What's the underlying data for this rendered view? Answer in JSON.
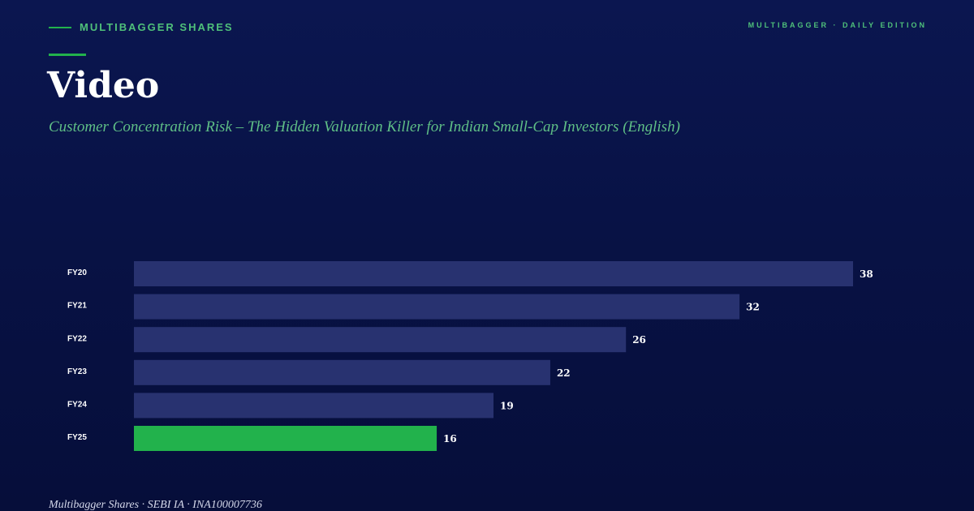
{
  "header": {
    "brand": "MULTIBAGGER SHARES",
    "edition": "MULTIBAGGER · DAILY EDITION"
  },
  "title": "Video",
  "subtitle": "Customer Concentration Risk – The Hidden Valuation Killer for Indian Small-Cap Investors (English)",
  "footer": "Multibagger Shares · SEBI IA · INA100007736",
  "colors": {
    "background": "#081245",
    "bar": "#283270",
    "highlight_bar": "#22b24c",
    "accent": "#22b24c",
    "label": "#ffffff"
  },
  "chart_data": {
    "type": "bar",
    "orientation": "horizontal",
    "categories": [
      "FY20",
      "FY21",
      "FY22",
      "FY23",
      "FY24",
      "FY25"
    ],
    "values": [
      38,
      32,
      26,
      22,
      19,
      16
    ],
    "highlight": "FY25",
    "title": "",
    "xlabel": "",
    "ylabel": "",
    "xlim": [
      0,
      38
    ],
    "grid": false,
    "data_labels": true
  }
}
